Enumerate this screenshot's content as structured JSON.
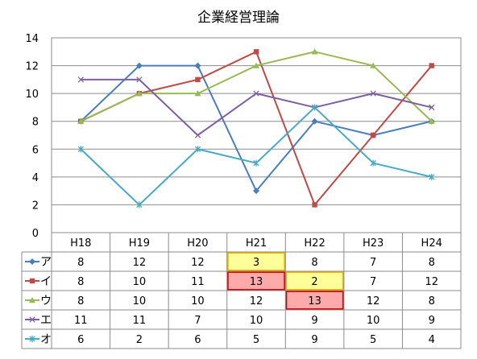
{
  "chart_data": {
    "type": "line",
    "title": "企業経営理論",
    "categories": [
      "H18",
      "H19",
      "H20",
      "H21",
      "H22",
      "H23",
      "H24"
    ],
    "ylim": [
      0,
      14
    ],
    "yticks": [
      0,
      2,
      4,
      6,
      8,
      10,
      12,
      14
    ],
    "grid": true,
    "legend": "data-table",
    "series": [
      {
        "name": "ア",
        "values": [
          8,
          12,
          12,
          3,
          8,
          7,
          8
        ],
        "color": "#4a7ebb",
        "marker": "diamond"
      },
      {
        "name": "イ",
        "values": [
          8,
          10,
          11,
          13,
          2,
          7,
          12
        ],
        "color": "#be4b48",
        "marker": "square"
      },
      {
        "name": "ウ",
        "values": [
          8,
          10,
          10,
          12,
          13,
          12,
          8
        ],
        "color": "#98b954",
        "marker": "triangle"
      },
      {
        "name": "エ",
        "values": [
          11,
          11,
          7,
          10,
          9,
          10,
          9
        ],
        "color": "#7d60a0",
        "marker": "x"
      },
      {
        "name": "オ",
        "values": [
          6,
          2,
          6,
          5,
          9,
          5,
          4
        ],
        "color": "#46aac5",
        "marker": "star"
      }
    ],
    "highlights": [
      {
        "series": 0,
        "category": 3,
        "fill": "#ffff99",
        "border": "#f0b400"
      },
      {
        "series": 1,
        "category": 3,
        "fill": "#ffaaaa",
        "border": "#e00000"
      },
      {
        "series": 1,
        "category": 4,
        "fill": "#ffff99",
        "border": "#f0b400"
      },
      {
        "series": 2,
        "category": 4,
        "fill": "#ffaaaa",
        "border": "#e00000"
      }
    ]
  }
}
